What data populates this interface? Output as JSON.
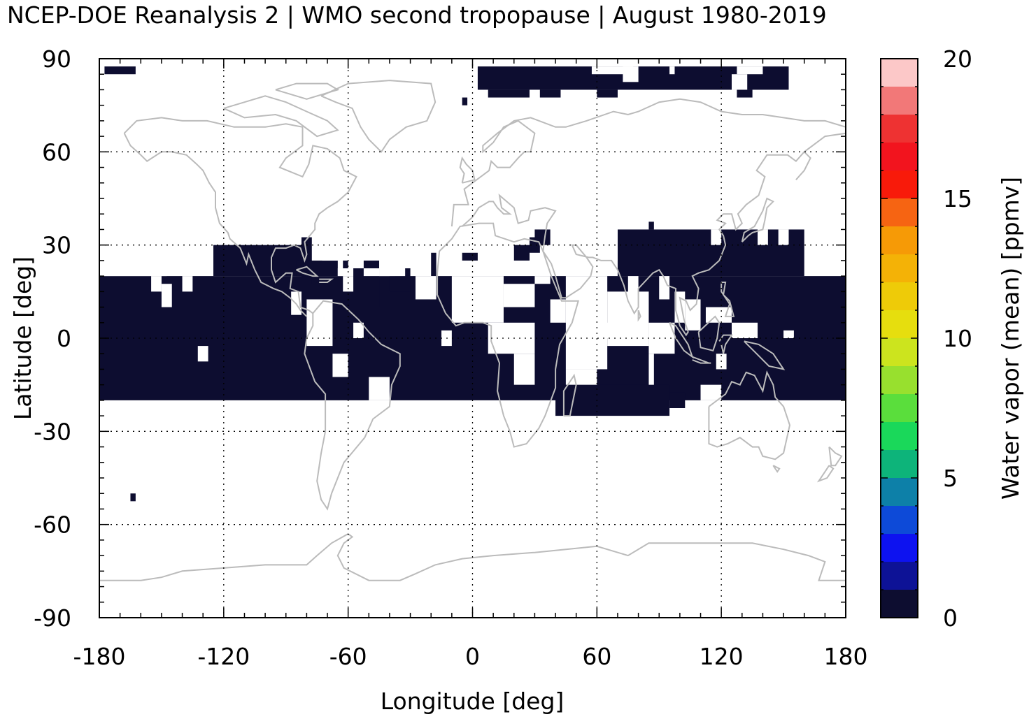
{
  "chart_data": {
    "type": "heatmap",
    "title": "NCEP-DOE Reanalysis 2 | WMO second tropopause | August 1980-2019",
    "xlabel": "Longitude [deg]",
    "ylabel": "Latitude [deg]",
    "colorbar_label": "Water vapor (mean) [ppmv]",
    "xlim": [
      -180,
      180
    ],
    "ylim": [
      -90,
      90
    ],
    "x_ticks": [
      -180,
      -120,
      -60,
      0,
      60,
      120,
      180
    ],
    "y_ticks": [
      90,
      60,
      30,
      0,
      -30,
      -60,
      -90
    ],
    "x_tick_labels": [
      "-180",
      "-120",
      "-60",
      "0",
      "60",
      "120",
      "180"
    ],
    "y_tick_labels": [
      "90",
      "60",
      "30",
      "0",
      "-30",
      "-60",
      "-90"
    ],
    "colorbar_ticks": [
      0,
      5,
      10,
      15,
      20
    ],
    "colorbar_tick_labels": [
      "0",
      "5",
      "10",
      "15",
      "20"
    ],
    "colorbar_range": [
      0,
      20
    ],
    "colorbar_colors": [
      "#0d0d30",
      "#0d1296",
      "#0d12f0",
      "#0d4ad8",
      "#0d80a8",
      "#0db47a",
      "#1ad85a",
      "#5ade3c",
      "#98e02e",
      "#cce41e",
      "#e6de0e",
      "#eecb08",
      "#f4b206",
      "#f69a06",
      "#f66412",
      "#f81a0a",
      "#f2141e",
      "#ee3232",
      "#f27878",
      "#fcc8c8"
    ],
    "grid": true,
    "land_outline_color": "#bbbbbb",
    "observed_color": "#0d0d30",
    "grid_resolution_deg": 2.5,
    "cells_observed": [
      {
        "lat": [
          -20,
          20
        ],
        "lon": [
          -180,
          180
        ],
        "value_ppmv": "0-1"
      },
      {
        "lat": [
          20,
          30
        ],
        "lon": [
          -125,
          -80
        ],
        "value_ppmv": "0-1"
      },
      {
        "lat": [
          20,
          35
        ],
        "lon": [
          70,
          160
        ],
        "value_ppmv": "0-1"
      },
      {
        "lat": [
          -25,
          -15
        ],
        "lon": [
          40,
          95
        ],
        "value_ppmv": "0-1"
      },
      {
        "lat": [
          80,
          87.5
        ],
        "lon": [
          2.5,
          152.5
        ],
        "value_ppmv": "0-1"
      },
      {
        "lat": [
          85,
          87.5
        ],
        "lon": [
          -177.5,
          -162.5
        ],
        "value_ppmv": "0-1"
      },
      {
        "lat": [
          -52.5,
          -50
        ],
        "lon": [
          -165,
          -162.5
        ],
        "value_ppmv": "0-1"
      }
    ]
  }
}
